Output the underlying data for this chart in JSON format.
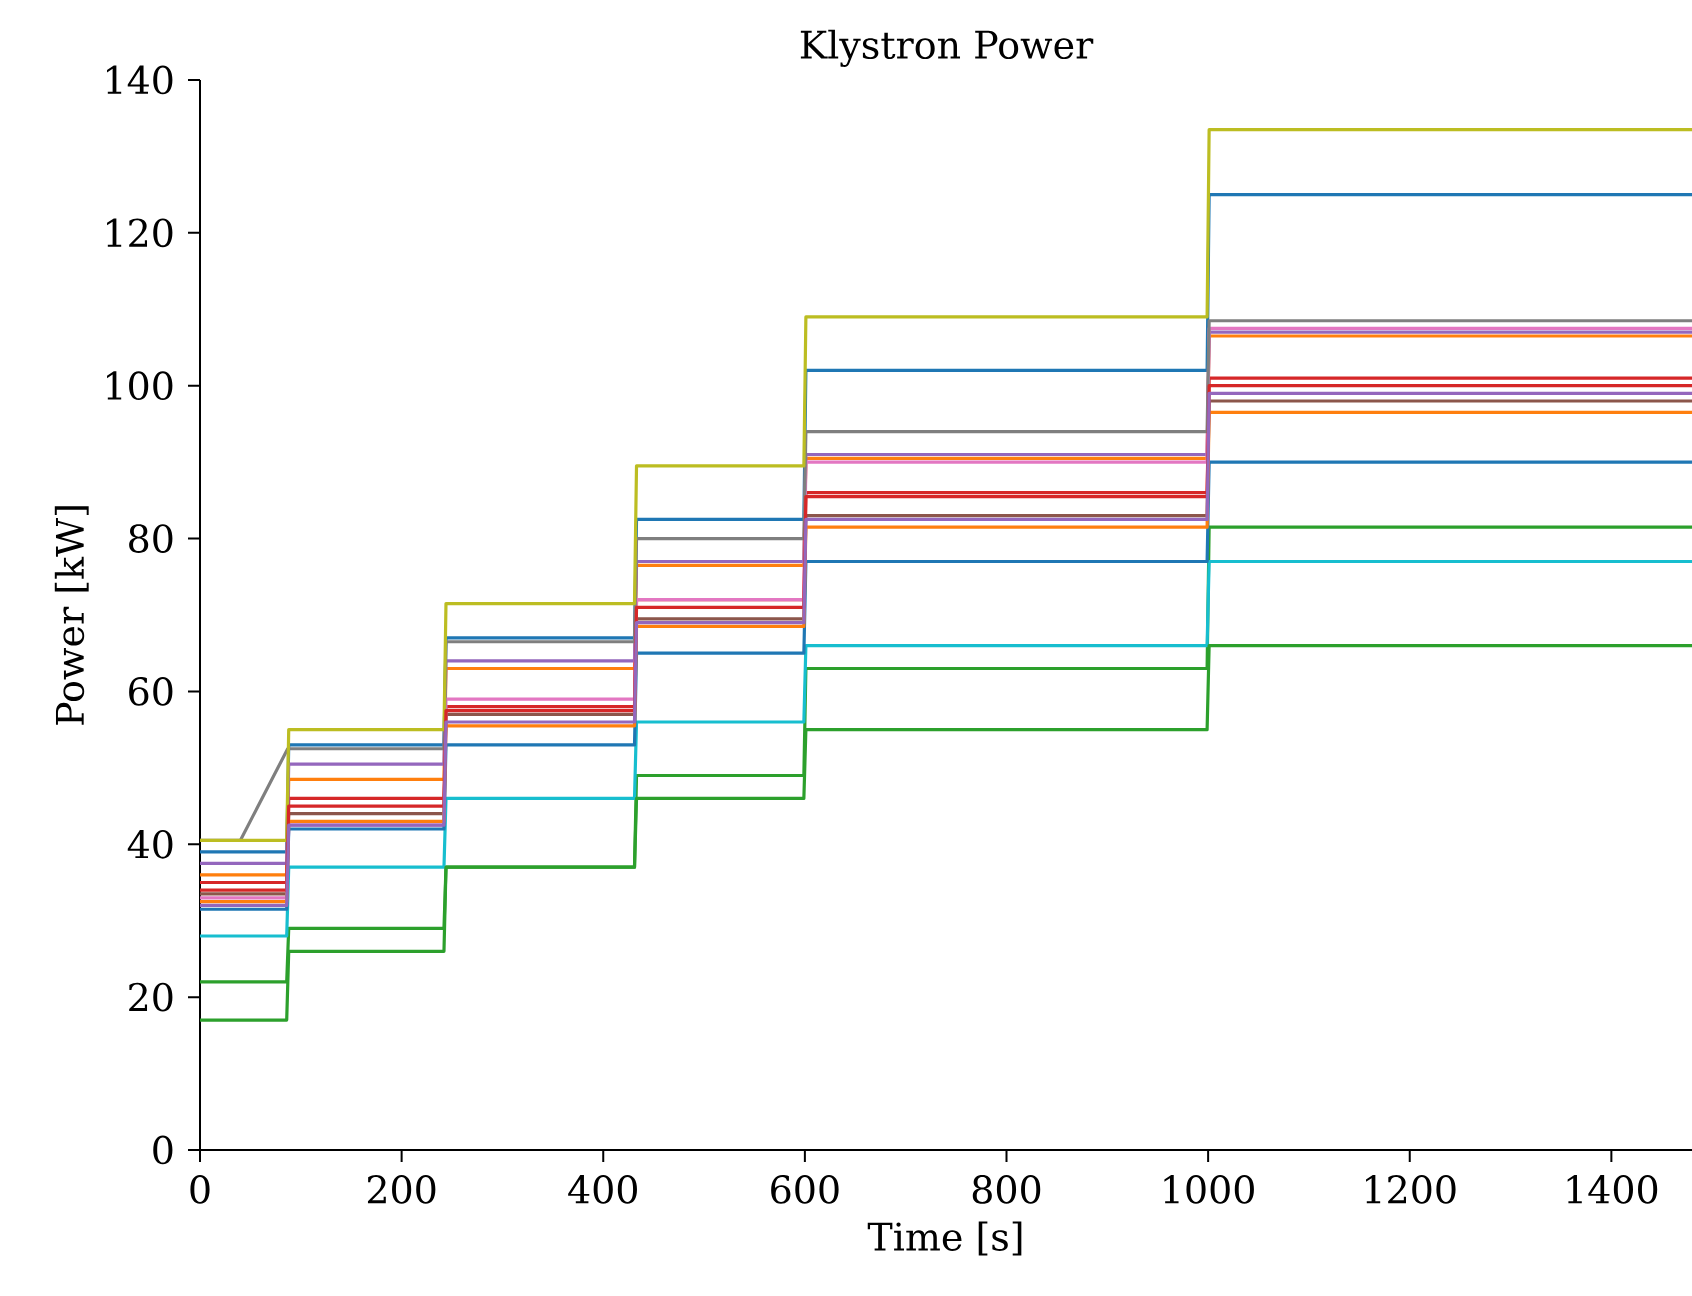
{
  "chart_data": {
    "type": "line",
    "title": "Klystron Power",
    "xlabel": "Time [s]",
    "ylabel": "Power [kW]",
    "x": [
      0,
      86,
      88,
      242,
      244,
      431,
      433,
      599,
      601,
      999,
      1001,
      1480
    ],
    "xlim": [
      0,
      1480
    ],
    "xticks": [
      0,
      200,
      400,
      600,
      800,
      1000,
      1200,
      1400
    ],
    "ylim": [
      0,
      140
    ],
    "yticks": [
      0,
      20,
      40,
      60,
      80,
      100,
      120,
      140
    ],
    "grid": false,
    "legend": false,
    "marker": "none",
    "line_style": "solid",
    "series": [
      {
        "color": "#1f77b4",
        "values": [
          39,
          39,
          53,
          53,
          67,
          67,
          82.5,
          82.5,
          102,
          102,
          125,
          125
        ]
      },
      {
        "color": "#ff7f0e",
        "values": [
          36,
          36,
          48.5,
          48.5,
          63,
          63,
          76.5,
          76.5,
          90.5,
          90.5,
          106.5,
          106.5
        ]
      },
      {
        "color": "#2ca02c",
        "values": [
          22,
          22,
          29,
          29,
          37,
          37,
          49,
          49,
          63,
          63,
          81.5,
          81.5
        ]
      },
      {
        "color": "#d62728",
        "values": [
          35,
          35,
          46,
          46,
          58,
          58,
          72,
          72,
          86,
          86,
          101,
          101
        ]
      },
      {
        "color": "#9467bd",
        "values": [
          37.5,
          37.5,
          50.5,
          50.5,
          64,
          64,
          77,
          77,
          91,
          91,
          107,
          107
        ]
      },
      {
        "color": "#8c564b",
        "values": [
          33.5,
          33.5,
          44,
          44,
          57,
          57,
          69.5,
          69.5,
          83,
          83,
          98,
          98
        ]
      },
      {
        "color": "#e377c2",
        "values": [
          33,
          33,
          42.5,
          42.5,
          59,
          59,
          72,
          72,
          90,
          90,
          107.5,
          107.5
        ]
      },
      {
        "color": "#7f7f7f",
        "x": [
          0,
          40,
          87,
          242,
          244,
          431,
          433,
          599,
          601,
          999,
          1001,
          1480
        ],
        "values": [
          40.5,
          40.5,
          52.5,
          52.5,
          66.5,
          66.5,
          80,
          80,
          94,
          94,
          108.5,
          108.5
        ]
      },
      {
        "color": "#bcbd22",
        "values": [
          40.5,
          40.5,
          55,
          55,
          71.5,
          71.5,
          89.5,
          89.5,
          109,
          109,
          133.5,
          133.5
        ]
      },
      {
        "color": "#17becf",
        "values": [
          28,
          28,
          37,
          37,
          46,
          46,
          56,
          56,
          66,
          66,
          77,
          77
        ]
      },
      {
        "color": "#1f77b4",
        "values": [
          31.5,
          31.5,
          42,
          42,
          53,
          53,
          65,
          65,
          77,
          77,
          90,
          90
        ]
      },
      {
        "color": "#ff7f0e",
        "values": [
          32.5,
          32.5,
          43,
          43,
          55.5,
          55.5,
          68.5,
          68.5,
          81.5,
          81.5,
          96.5,
          96.5
        ]
      },
      {
        "color": "#2ca02c",
        "values": [
          17,
          17,
          26,
          26,
          37,
          37,
          46,
          46,
          55,
          55,
          66,
          66
        ]
      },
      {
        "color": "#d62728",
        "values": [
          34,
          34,
          45,
          45,
          57.5,
          57.5,
          71,
          71,
          85.5,
          85.5,
          100,
          100
        ]
      },
      {
        "color": "#9467bd",
        "values": [
          32,
          32,
          42.5,
          42.5,
          56,
          56,
          69,
          69,
          82.5,
          82.5,
          99,
          99
        ]
      }
    ]
  }
}
